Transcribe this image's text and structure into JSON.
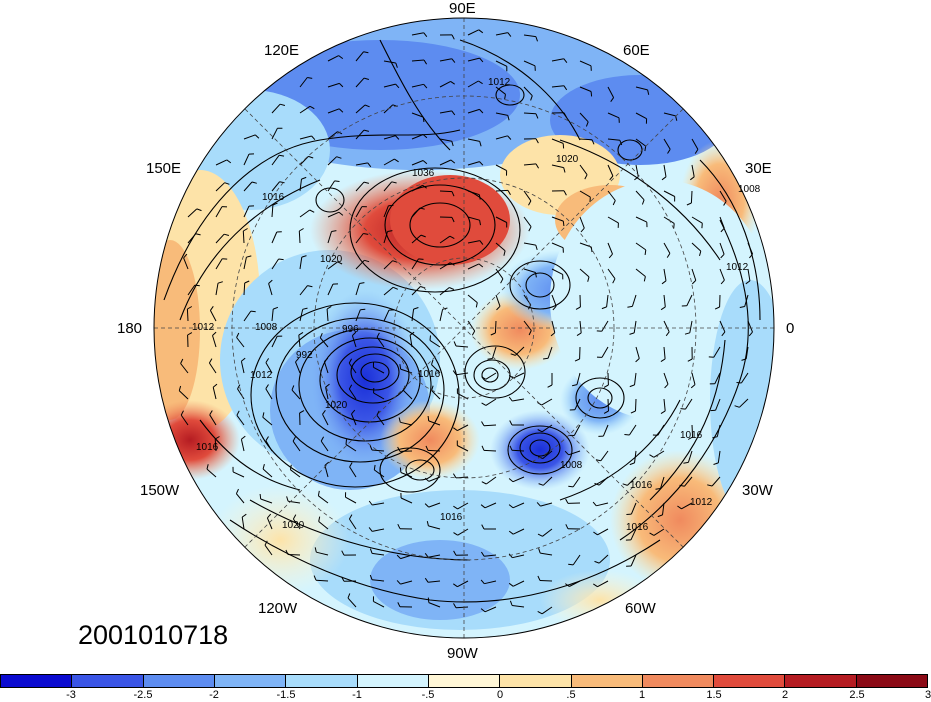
{
  "map": {
    "projection": "north-polar-stereographic",
    "field_shading": "anomaly",
    "contour_field": "sea-level pressure (hPa)",
    "wind_barbs": true
  },
  "longitude_labels": [
    "90E",
    "120E",
    "60E",
    "150E",
    "30E",
    "180",
    "0",
    "150W",
    "30W",
    "120W",
    "60W",
    "90W"
  ],
  "contour_labels": [
    "1012",
    "1020",
    "1036",
    "1016",
    "1020",
    "1008",
    "1012",
    "996",
    "992",
    "1012",
    "1008",
    "1016",
    "1020",
    "1016",
    "1012",
    "1008",
    "1016",
    "1016",
    "1020",
    "1016",
    "1012",
    "1016"
  ],
  "datestamp": "2001010718",
  "colorbar": {
    "colors": [
      "#0b0bd0",
      "#3a55e6",
      "#5d8cf0",
      "#7fb4f6",
      "#a8dcfb",
      "#d4f4fe",
      "#fff6d6",
      "#fde3a8",
      "#f8bb7a",
      "#f08a5e",
      "#e04b3c",
      "#b51c22",
      "#8b0a16"
    ],
    "tick_labels": [
      "-3",
      "-2.5",
      "-2",
      "-1.5",
      "-1",
      "-.5",
      "0",
      ".5",
      "1",
      "1.5",
      "2",
      "2.5",
      "3"
    ]
  }
}
